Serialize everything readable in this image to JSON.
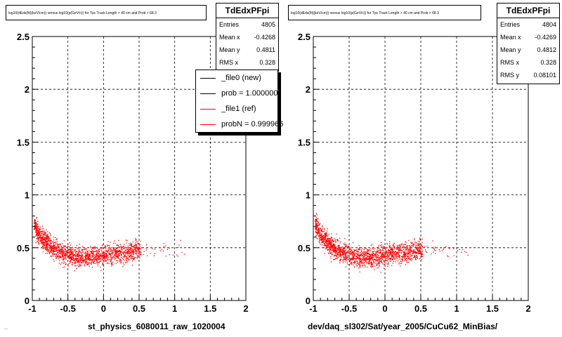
{
  "chart_data": [
    {
      "type": "scatter",
      "title": "log10(dEdx(fit)(keV/cm)) versus log10(p(GeV/c)) for Tpc Track Length > 40 cm and Prob > 68.3",
      "xlabel": "st_physics_6080011_raw_1020004",
      "ylabel": "",
      "xlim": [
        -1,
        2
      ],
      "ylim": [
        0,
        2.5
      ],
      "x_ticks": [
        "-1",
        "-0.5",
        "0",
        "0.5",
        "1",
        "1.5",
        "2"
      ],
      "y_ticks": [
        "0",
        "0.5",
        "1",
        "1.5",
        "2",
        "2.5"
      ],
      "grid": true,
      "stats": {
        "name": "TdEdxPFpi",
        "rows": [
          {
            "label": "Entries",
            "value": "4805"
          },
          {
            "label": "Mean x",
            "value": "-0.4268"
          },
          {
            "label": "Mean y",
            "value": "0.4811"
          },
          {
            "label": "RMS x",
            "value": "0.328"
          }
        ]
      },
      "legend": {
        "placement": "top-right",
        "entries": [
          {
            "label": "_file0 (new)",
            "color": "#000000"
          },
          {
            "label": "prob = 1.000000",
            "color": "#000000"
          },
          {
            "label": "_file1 (ref)",
            "color": "#ff0000"
          },
          {
            "label": "probN = 0.999966",
            "color": "#ff0000"
          }
        ]
      },
      "series": [
        {
          "color": "#ff0000",
          "band_center": [
            [
              -0.98,
              0.72
            ],
            [
              -0.9,
              0.62
            ],
            [
              -0.8,
              0.55
            ],
            [
              -0.7,
              0.49
            ],
            [
              -0.6,
              0.46
            ],
            [
              -0.5,
              0.43
            ],
            [
              -0.4,
              0.415
            ],
            [
              -0.3,
              0.41
            ],
            [
              -0.2,
              0.41
            ],
            [
              -0.1,
              0.42
            ],
            [
              0.0,
              0.43
            ],
            [
              0.1,
              0.44
            ],
            [
              0.2,
              0.45
            ],
            [
              0.3,
              0.46
            ],
            [
              0.4,
              0.47
            ],
            [
              0.5,
              0.48
            ]
          ],
          "band_halfwidth": 0.045
        }
      ],
      "points": 4805
    },
    {
      "type": "scatter",
      "title": "log10(dEdx(fit)(keV/cm)) versus log10(p(GeV/c)) for Tpc Track Length > 40 cm and Prob > 68.3",
      "xlabel": "dev/daq_sl302/Sat/year_2005/CuCu62_MinBias/",
      "ylabel": "",
      "xlim": [
        -1,
        2
      ],
      "ylim": [
        0,
        2.5
      ],
      "x_ticks": [
        "-1",
        "-0.5",
        "0",
        "0.5",
        "1",
        "1.5",
        "2"
      ],
      "y_ticks": [
        "0",
        "0.5",
        "1",
        "1.5",
        "2",
        "2.5"
      ],
      "grid": true,
      "stats": {
        "name": "TdEdxPFpi",
        "rows": [
          {
            "label": "Entries",
            "value": "4804"
          },
          {
            "label": "Mean x",
            "value": "-0.4269"
          },
          {
            "label": "Mean y",
            "value": "0.4812"
          },
          {
            "label": "RMS x",
            "value": "0.328"
          },
          {
            "label": "RMS y",
            "value": "0.08101"
          }
        ]
      },
      "series": [
        {
          "color": "#ff0000",
          "band_center": [
            [
              -0.98,
              0.72
            ],
            [
              -0.9,
              0.62
            ],
            [
              -0.8,
              0.55
            ],
            [
              -0.7,
              0.49
            ],
            [
              -0.6,
              0.46
            ],
            [
              -0.5,
              0.43
            ],
            [
              -0.4,
              0.415
            ],
            [
              -0.3,
              0.41
            ],
            [
              -0.2,
              0.41
            ],
            [
              -0.1,
              0.42
            ],
            [
              0.0,
              0.43
            ],
            [
              0.1,
              0.44
            ],
            [
              0.2,
              0.45
            ],
            [
              0.3,
              0.46
            ],
            [
              0.4,
              0.47
            ],
            [
              0.5,
              0.48
            ]
          ],
          "band_halfwidth": 0.045
        }
      ],
      "points": 4804
    }
  ],
  "footer_text": "..."
}
